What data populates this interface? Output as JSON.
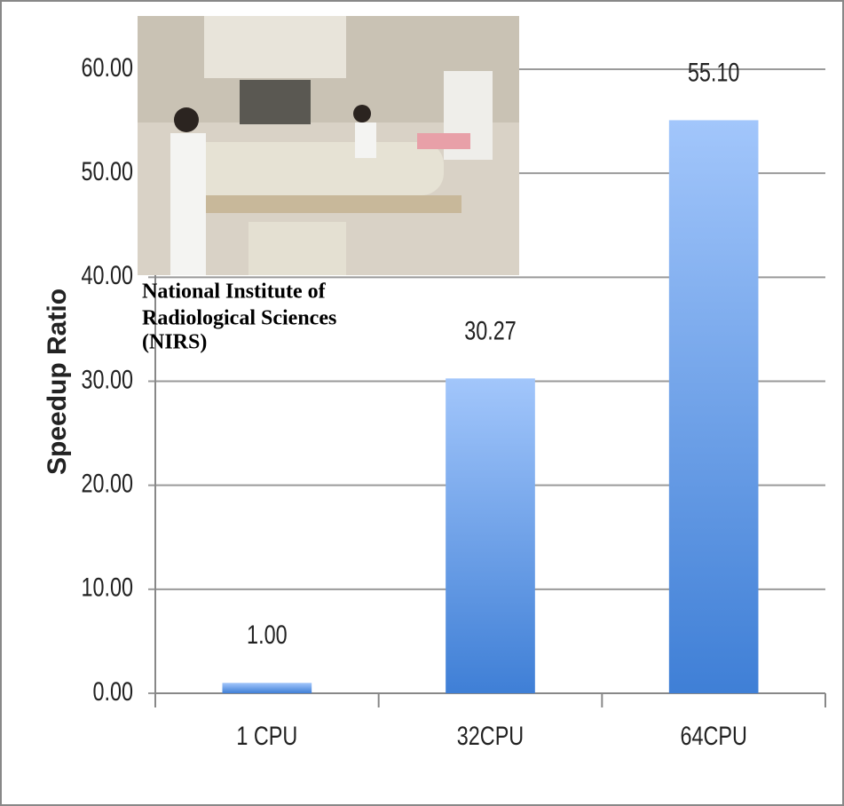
{
  "chart_data": {
    "type": "bar",
    "y_label": "Speedup Ratio",
    "categories": [
      "1 CPU",
      "32CPU",
      "64CPU"
    ],
    "values": [
      1.0,
      30.27,
      55.1
    ],
    "value_labels": [
      "1.00",
      "30.27",
      "55.10"
    ],
    "color": "#3f7fd6",
    "ylim": [
      0,
      60
    ],
    "yticks": [
      {
        "value": 0,
        "label": "0.00"
      },
      {
        "value": 10,
        "label": "10.00"
      },
      {
        "value": 20,
        "label": "20.00"
      },
      {
        "value": 30,
        "label": "30.00"
      },
      {
        "value": 40,
        "label": "40.00"
      },
      {
        "value": 50,
        "label": "50.00"
      },
      {
        "value": 60,
        "label": "60.00"
      }
    ],
    "grid": true,
    "image_caption": [
      "National Institute of",
      "Radiological Sciences",
      "(NIRS)"
    ]
  }
}
